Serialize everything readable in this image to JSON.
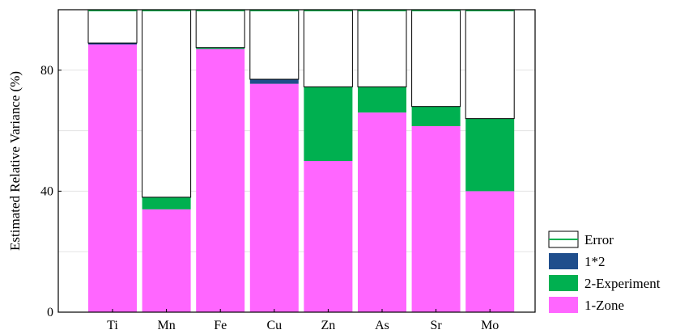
{
  "chart_data": {
    "type": "bar",
    "stacked": true,
    "title": "",
    "xlabel": "",
    "ylabel": "Estimated Relative Variance (%)",
    "ylim": [
      0,
      100
    ],
    "yticks": [
      0,
      40,
      80
    ],
    "grid": true,
    "legend_position": "bottom-right outside",
    "categories": [
      "Ti",
      "Mn",
      "Fe",
      "Cu",
      "Zn",
      "As",
      "Sr",
      "Mo"
    ],
    "series": [
      {
        "name": "1-Zone",
        "color": "#ff66ff",
        "values": [
          88.5,
          34.0,
          87.0,
          75.5,
          50.0,
          66.0,
          61.5,
          40.0
        ]
      },
      {
        "name": "2-Experiment",
        "color": "#00b050",
        "values": [
          0.0,
          4.0,
          0.5,
          0.0,
          24.5,
          8.5,
          6.5,
          24.0
        ]
      },
      {
        "name": "1*2",
        "color": "#1f4e8c",
        "values": [
          0.5,
          0.0,
          0.0,
          1.5,
          0.0,
          0.0,
          0.0,
          0.0
        ]
      },
      {
        "name": "Error",
        "color": "#ffffff",
        "values": [
          11.0,
          62.0,
          12.5,
          23.0,
          25.5,
          25.5,
          32.0,
          36.0
        ]
      }
    ],
    "legend_order": [
      "Error",
      "1*2",
      "2-Experiment",
      "1-Zone"
    ]
  }
}
